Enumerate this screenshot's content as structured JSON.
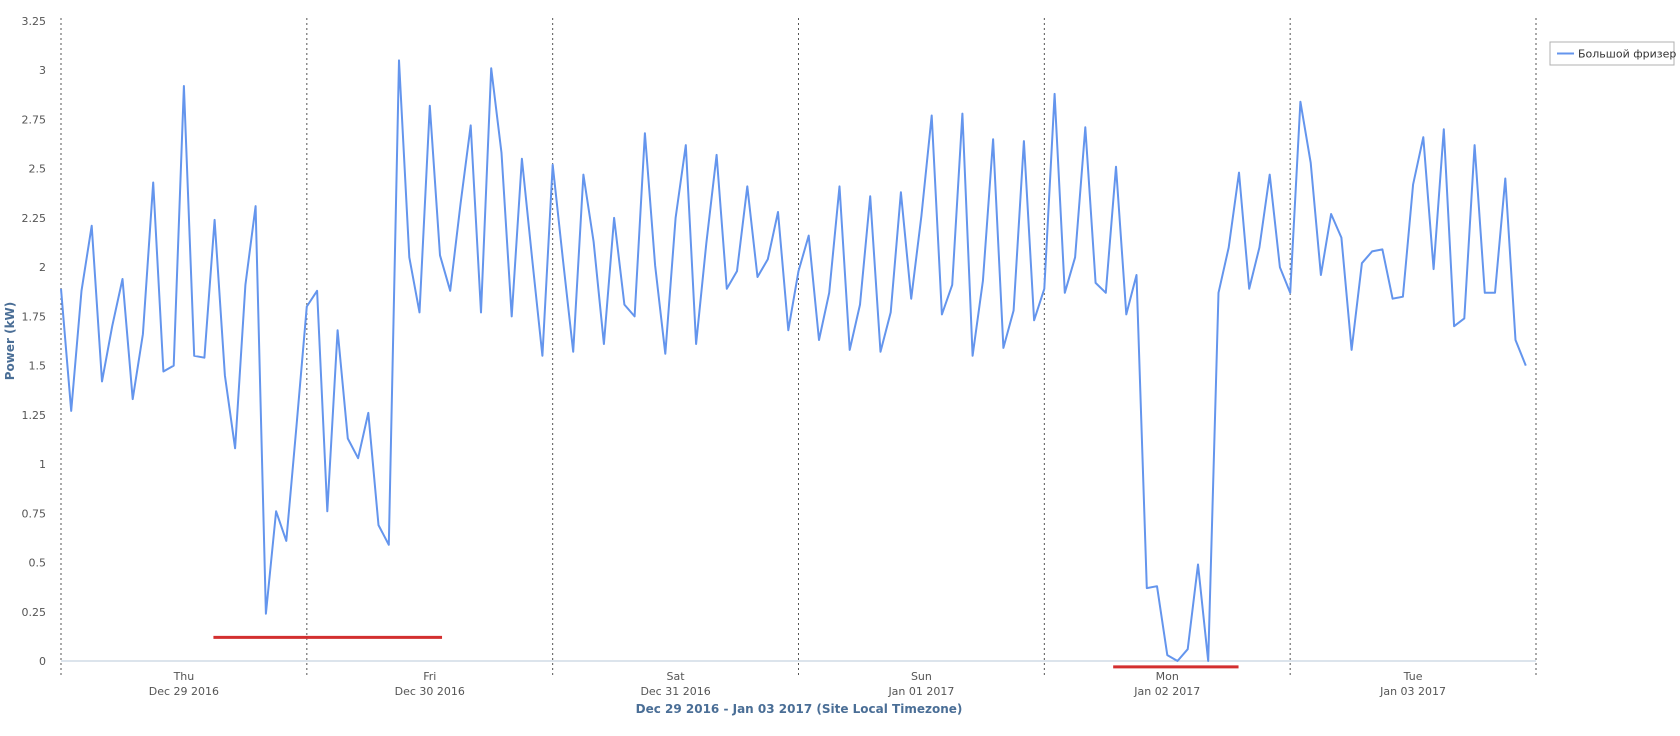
{
  "colors": {
    "series": "#6495ed",
    "marker": "#d32f2f",
    "axis_title": "#4a6e96",
    "divider": "#555555"
  },
  "chart_data": {
    "type": "line",
    "xlabel": "Dec 29 2016 - Jan 03 2017 (Site Local Timezone)",
    "ylabel": "Power (kW)",
    "ylim": [
      0,
      3.25
    ],
    "yticks": [
      "0",
      "0.25",
      "0.5",
      "0.75",
      "1",
      "1.25",
      "1.5",
      "1.75",
      "2",
      "2.25",
      "2.5",
      "2.75",
      "3",
      "3.25"
    ],
    "xlim_days": [
      0,
      6
    ],
    "day_labels": [
      {
        "day": "Thu",
        "date": "Dec 29 2016"
      },
      {
        "day": "Fri",
        "date": "Dec 30 2016"
      },
      {
        "day": "Sat",
        "date": "Dec 31 2016"
      },
      {
        "day": "Sun",
        "date": "Jan 01 2017"
      },
      {
        "day": "Mon",
        "date": "Jan 02 2017"
      },
      {
        "day": "Tue",
        "date": "Jan 03 2017"
      }
    ],
    "legend": {
      "position": "top-right"
    },
    "series": [
      {
        "name": "Большой фризер",
        "x_day_start": 0,
        "x_step_days": 0.041667,
        "values": [
          1.89,
          1.27,
          1.88,
          2.21,
          1.42,
          1.7,
          1.94,
          1.33,
          1.66,
          2.43,
          1.47,
          1.5,
          2.92,
          1.55,
          1.54,
          2.24,
          1.45,
          1.08,
          1.91,
          2.31,
          0.24,
          0.76,
          0.61,
          1.2,
          1.8,
          1.88,
          0.76,
          1.68,
          1.13,
          1.03,
          1.26,
          0.69,
          0.59,
          3.05,
          2.05,
          1.77,
          2.82,
          2.06,
          1.88,
          2.32,
          2.72,
          1.77,
          3.01,
          2.58,
          1.75,
          2.55,
          2.04,
          1.55,
          2.52,
          2.04,
          1.57,
          2.47,
          2.13,
          1.61,
          2.25,
          1.81,
          1.75,
          2.68,
          2.01,
          1.56,
          2.25,
          2.62,
          1.61,
          2.12,
          2.57,
          1.89,
          1.98,
          2.41,
          1.95,
          2.04,
          2.28,
          1.68,
          1.98,
          2.16,
          1.63,
          1.87,
          2.41,
          1.58,
          1.81,
          2.36,
          1.57,
          1.77,
          2.38,
          1.84,
          2.26,
          2.77,
          1.76,
          1.91,
          2.78,
          1.55,
          1.93,
          2.65,
          1.59,
          1.78,
          2.64,
          1.73,
          1.89,
          2.88,
          1.87,
          2.05,
          2.71,
          1.92,
          1.87,
          2.51,
          1.76,
          1.96,
          0.37,
          0.38,
          0.03,
          0.0,
          0.06,
          0.49,
          0.0,
          1.87,
          2.1,
          2.48,
          1.89,
          2.1,
          2.47,
          2.0,
          1.87,
          2.84,
          2.53,
          1.96,
          2.27,
          2.15,
          1.58,
          2.02,
          2.08,
          2.09,
          1.84,
          1.85,
          2.42,
          2.66,
          1.99,
          2.7,
          1.7,
          1.74,
          2.62,
          1.87,
          1.87,
          2.45,
          1.63,
          1.5
        ]
      }
    ],
    "annotations": [
      {
        "type": "horizontal-marker",
        "x_day_start": 0.62,
        "x_day_end": 1.55,
        "y": 0.12
      },
      {
        "type": "horizontal-marker",
        "x_day_start": 4.28,
        "x_day_end": 4.79,
        "y": -0.03
      }
    ]
  }
}
